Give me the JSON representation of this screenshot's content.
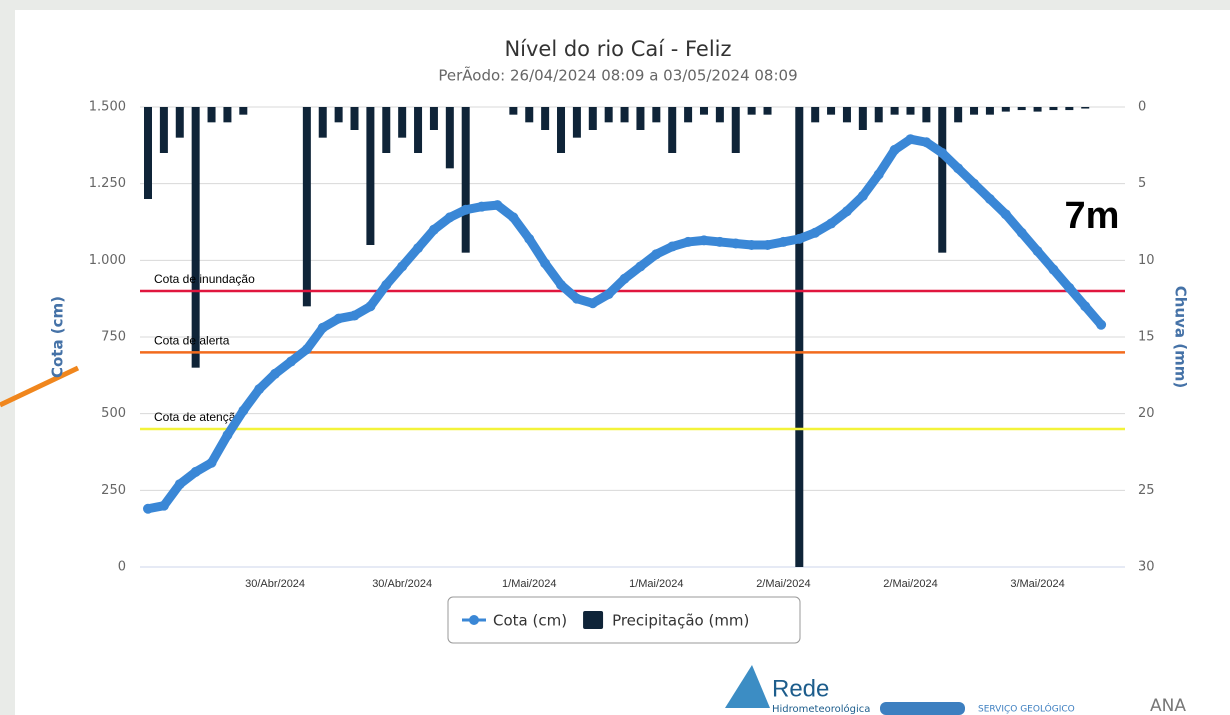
{
  "chart_data": {
    "type": "bar-line",
    "title": "Nível do rio Caí - Feliz",
    "subtitle": "PerÃodo: 26/04/2024 08:09 a 03/05/2024 08:09",
    "y_label": "Cota (cm)",
    "y2_label": "Chuva (mm)",
    "annotation": "7m",
    "categories": [
      null,
      null,
      null,
      null,
      null,
      null,
      null,
      null,
      "30/Abr/2024",
      null,
      null,
      null,
      null,
      null,
      null,
      null,
      "30/Abr/2024",
      null,
      null,
      null,
      null,
      null,
      null,
      null,
      "1/Mai/2024",
      null,
      null,
      null,
      null,
      null,
      null,
      null,
      "1/Mai/2024",
      null,
      null,
      null,
      null,
      null,
      null,
      null,
      "2/Mai/2024",
      null,
      null,
      null,
      null,
      null,
      null,
      null,
      "2/Mai/2024",
      null,
      null,
      null,
      null,
      null,
      null,
      null,
      "3/Mai/2024",
      null,
      null,
      null,
      null,
      null
    ],
    "series": [
      {
        "name": "Cota (cm)",
        "type": "line",
        "color": "#3a87d6",
        "values": [
          190,
          200,
          270,
          310,
          340,
          430,
          510,
          580,
          630,
          670,
          710,
          780,
          810,
          820,
          850,
          920,
          980,
          1040,
          1100,
          1140,
          1165,
          1175,
          1180,
          1140,
          1070,
          990,
          920,
          875,
          860,
          890,
          940,
          980,
          1020,
          1045,
          1060,
          1065,
          1060,
          1055,
          1050,
          1050,
          1060,
          1070,
          1090,
          1120,
          1160,
          1210,
          1280,
          1360,
          1395,
          1385,
          1350,
          1300,
          1250,
          1200,
          1150,
          1090,
          1030,
          970,
          910,
          850,
          790,
          null
        ]
      },
      {
        "name": "Precipitação (mm)",
        "type": "bar",
        "axis": "y2",
        "color": "#0f2438",
        "values": [
          6,
          3,
          2,
          17,
          1,
          1,
          0.5,
          0,
          0,
          0,
          13,
          2,
          1,
          1.5,
          9,
          3,
          2,
          3,
          1.5,
          4,
          9.5,
          0,
          0,
          0.5,
          1,
          1.5,
          3,
          2,
          1.5,
          1,
          1,
          1.5,
          1,
          3,
          1,
          0.5,
          1,
          3,
          0.5,
          0.5,
          0,
          30,
          1,
          0.5,
          1,
          1.5,
          1,
          0.5,
          0.5,
          1,
          9.5,
          1,
          0.5,
          0.5,
          0.3,
          0.2,
          0.3,
          0.2,
          0.2,
          0.1,
          0,
          0
        ]
      }
    ],
    "ylim": [
      0,
      1500
    ],
    "yticks": [
      0,
      250,
      500,
      750,
      {
        "value": 1000,
        "label": "1.000"
      },
      {
        "value": 1250,
        "label": "1.250"
      },
      {
        "value": 1500,
        "label": "1.500"
      }
    ],
    "y2lim": [
      0,
      30
    ],
    "y2_inverted": true,
    "y2ticks": [
      0,
      5,
      10,
      15,
      20,
      25,
      30
    ],
    "grid": true,
    "legend": "bottom",
    "plot_lines": [
      {
        "label": "Cota de inundação",
        "value": 900,
        "color": "#e0163e"
      },
      {
        "label": "Cota de alerta",
        "value": 700,
        "color": "#f26b1d"
      },
      {
        "label": "Cota de atenção",
        "value": 450,
        "color": "#f3f33a"
      }
    ]
  },
  "footer": {
    "logo_title": "Rede",
    "logo_subtitle": "Hidrometeorológica",
    "partner": "SERVIÇO GEOLÓGICO",
    "agency": "ANA"
  }
}
